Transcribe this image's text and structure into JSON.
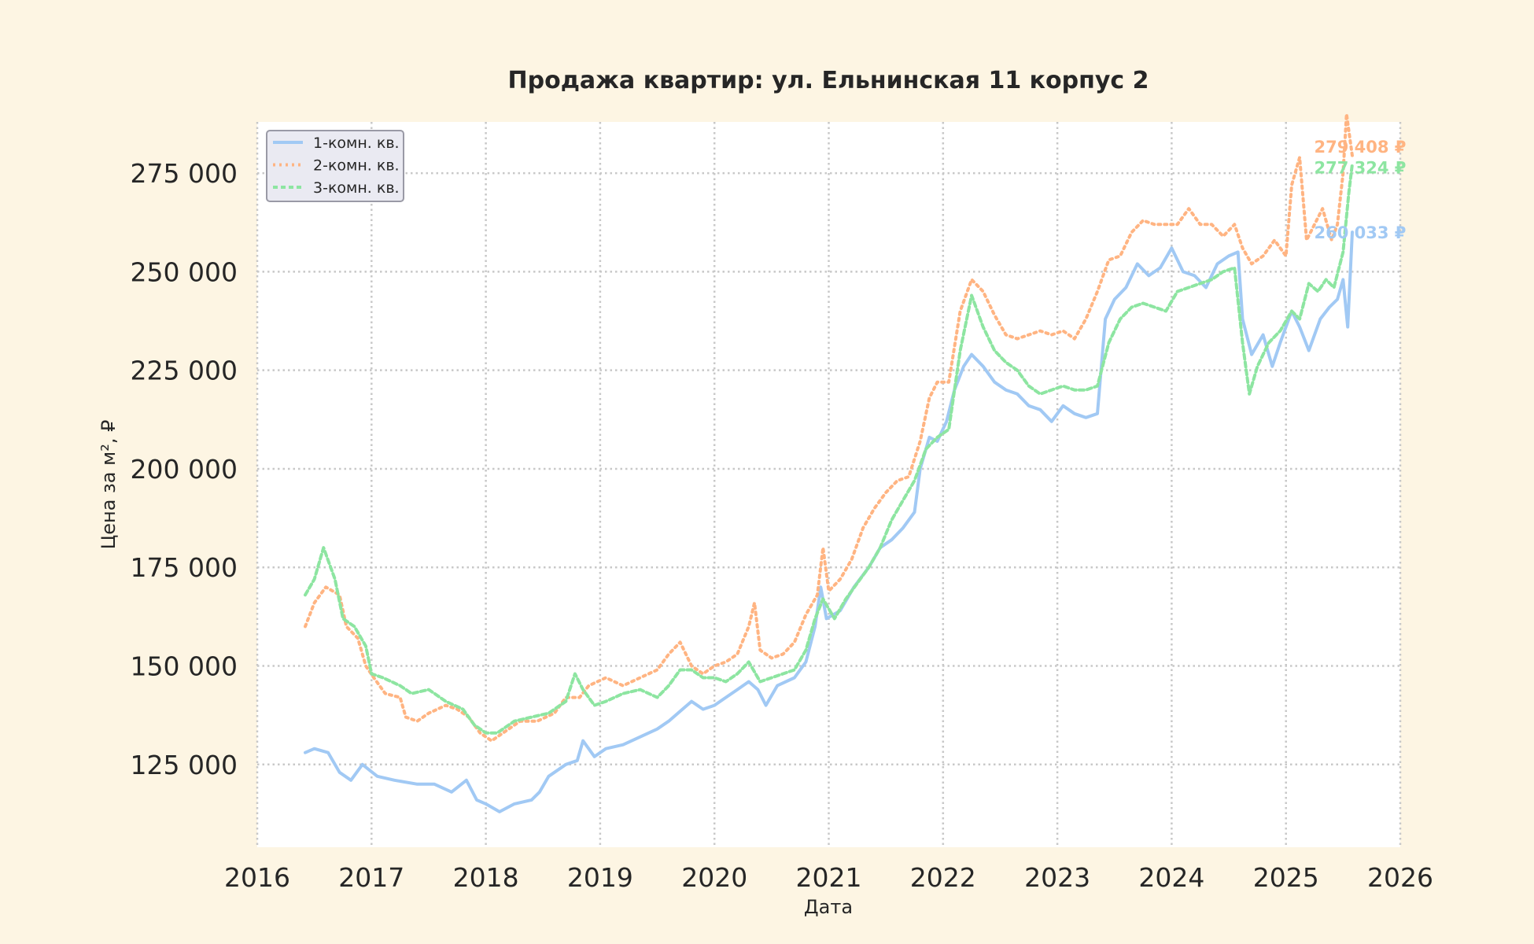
{
  "chart_data": {
    "type": "line",
    "title": "Продажа квартир: ул. Ельнинская 11 корпус 2",
    "xlabel": "Дата",
    "ylabel": "Цена за м², ₽",
    "xlim": [
      2016.0,
      2026.0
    ],
    "ylim": [
      104000,
      288000
    ],
    "x_ticks": [
      "2016",
      "2017",
      "2018",
      "2019",
      "2020",
      "2021",
      "2022",
      "2023",
      "2024",
      "2025",
      "2026"
    ],
    "y_ticks": [
      {
        "value": 125000,
        "label": "125 000"
      },
      {
        "value": 150000,
        "label": "150 000"
      },
      {
        "value": 175000,
        "label": "175 000"
      },
      {
        "value": 200000,
        "label": "200 000"
      },
      {
        "value": 225000,
        "label": "225 000"
      },
      {
        "value": 250000,
        "label": "250 000"
      },
      {
        "value": 275000,
        "label": "275 000"
      }
    ],
    "grid": true,
    "legend_position": "top-left",
    "series": [
      {
        "name": "1-комн. кв.",
        "color": "#a1c9f4",
        "dash": "solid",
        "end_label": "260 033 ₽",
        "points": [
          [
            2016.42,
            128000
          ],
          [
            2016.5,
            129000
          ],
          [
            2016.62,
            128000
          ],
          [
            2016.72,
            123000
          ],
          [
            2016.82,
            121000
          ],
          [
            2016.92,
            125000
          ],
          [
            2017.05,
            122000
          ],
          [
            2017.2,
            121000
          ],
          [
            2017.4,
            120000
          ],
          [
            2017.55,
            120000
          ],
          [
            2017.7,
            118000
          ],
          [
            2017.83,
            121000
          ],
          [
            2017.92,
            116000
          ],
          [
            2018.0,
            115000
          ],
          [
            2018.12,
            113000
          ],
          [
            2018.25,
            115000
          ],
          [
            2018.4,
            116000
          ],
          [
            2018.47,
            118000
          ],
          [
            2018.55,
            122000
          ],
          [
            2018.7,
            125000
          ],
          [
            2018.8,
            126000
          ],
          [
            2018.85,
            131000
          ],
          [
            2018.95,
            127000
          ],
          [
            2019.05,
            129000
          ],
          [
            2019.2,
            130000
          ],
          [
            2019.35,
            132000
          ],
          [
            2019.5,
            134000
          ],
          [
            2019.6,
            136000
          ],
          [
            2019.72,
            139000
          ],
          [
            2019.8,
            141000
          ],
          [
            2019.9,
            139000
          ],
          [
            2020.0,
            140000
          ],
          [
            2020.1,
            142000
          ],
          [
            2020.2,
            144000
          ],
          [
            2020.3,
            146000
          ],
          [
            2020.38,
            144000
          ],
          [
            2020.45,
            140000
          ],
          [
            2020.55,
            145000
          ],
          [
            2020.7,
            147000
          ],
          [
            2020.8,
            151000
          ],
          [
            2020.88,
            160000
          ],
          [
            2020.93,
            170000
          ],
          [
            2020.98,
            162000
          ],
          [
            2021.1,
            164000
          ],
          [
            2021.22,
            170000
          ],
          [
            2021.35,
            175000
          ],
          [
            2021.45,
            180000
          ],
          [
            2021.55,
            182000
          ],
          [
            2021.65,
            185000
          ],
          [
            2021.75,
            189000
          ],
          [
            2021.8,
            200000
          ],
          [
            2021.88,
            208000
          ],
          [
            2021.95,
            207000
          ],
          [
            2022.03,
            212000
          ],
          [
            2022.1,
            220000
          ],
          [
            2022.18,
            226000
          ],
          [
            2022.25,
            229000
          ],
          [
            2022.35,
            226000
          ],
          [
            2022.45,
            222000
          ],
          [
            2022.55,
            220000
          ],
          [
            2022.65,
            219000
          ],
          [
            2022.75,
            216000
          ],
          [
            2022.85,
            215000
          ],
          [
            2022.95,
            212000
          ],
          [
            2023.05,
            216000
          ],
          [
            2023.15,
            214000
          ],
          [
            2023.25,
            213000
          ],
          [
            2023.35,
            214000
          ],
          [
            2023.42,
            238000
          ],
          [
            2023.5,
            243000
          ],
          [
            2023.6,
            246000
          ],
          [
            2023.7,
            252000
          ],
          [
            2023.8,
            249000
          ],
          [
            2023.9,
            251000
          ],
          [
            2024.0,
            256000
          ],
          [
            2024.1,
            250000
          ],
          [
            2024.2,
            249000
          ],
          [
            2024.3,
            246000
          ],
          [
            2024.4,
            252000
          ],
          [
            2024.5,
            254000
          ],
          [
            2024.58,
            255000
          ],
          [
            2024.62,
            238000
          ],
          [
            2024.7,
            229000
          ],
          [
            2024.8,
            234000
          ],
          [
            2024.88,
            226000
          ],
          [
            2024.95,
            232000
          ],
          [
            2025.05,
            240000
          ],
          [
            2025.12,
            236000
          ],
          [
            2025.2,
            230000
          ],
          [
            2025.3,
            238000
          ],
          [
            2025.38,
            241000
          ],
          [
            2025.45,
            243000
          ],
          [
            2025.5,
            248000
          ],
          [
            2025.54,
            236000
          ],
          [
            2025.58,
            260033
          ]
        ]
      },
      {
        "name": "2-комн. кв.",
        "color": "#ffb482",
        "dash": "dotted",
        "end_label": "279 408 ₽",
        "points": [
          [
            2016.42,
            160000
          ],
          [
            2016.5,
            166000
          ],
          [
            2016.6,
            170000
          ],
          [
            2016.72,
            168000
          ],
          [
            2016.78,
            160000
          ],
          [
            2016.88,
            157000
          ],
          [
            2016.95,
            150000
          ],
          [
            2017.02,
            147000
          ],
          [
            2017.12,
            143000
          ],
          [
            2017.25,
            142000
          ],
          [
            2017.3,
            137000
          ],
          [
            2017.4,
            136000
          ],
          [
            2017.5,
            138000
          ],
          [
            2017.65,
            140000
          ],
          [
            2017.75,
            139000
          ],
          [
            2017.85,
            137000
          ],
          [
            2017.95,
            133000
          ],
          [
            2018.05,
            131000
          ],
          [
            2018.15,
            133000
          ],
          [
            2018.3,
            136000
          ],
          [
            2018.45,
            136000
          ],
          [
            2018.6,
            138000
          ],
          [
            2018.7,
            142000
          ],
          [
            2018.82,
            142000
          ],
          [
            2018.9,
            145000
          ],
          [
            2019.05,
            147000
          ],
          [
            2019.2,
            145000
          ],
          [
            2019.35,
            147000
          ],
          [
            2019.5,
            149000
          ],
          [
            2019.6,
            153000
          ],
          [
            2019.7,
            156000
          ],
          [
            2019.8,
            150000
          ],
          [
            2019.9,
            148000
          ],
          [
            2020.0,
            150000
          ],
          [
            2020.1,
            151000
          ],
          [
            2020.2,
            153000
          ],
          [
            2020.3,
            160000
          ],
          [
            2020.35,
            166000
          ],
          [
            2020.4,
            154000
          ],
          [
            2020.5,
            152000
          ],
          [
            2020.6,
            153000
          ],
          [
            2020.7,
            156000
          ],
          [
            2020.8,
            163000
          ],
          [
            2020.9,
            168000
          ],
          [
            2020.95,
            180000
          ],
          [
            2021.0,
            169000
          ],
          [
            2021.1,
            172000
          ],
          [
            2021.2,
            177000
          ],
          [
            2021.3,
            185000
          ],
          [
            2021.4,
            190000
          ],
          [
            2021.5,
            194000
          ],
          [
            2021.6,
            197000
          ],
          [
            2021.7,
            198000
          ],
          [
            2021.8,
            207000
          ],
          [
            2021.88,
            218000
          ],
          [
            2021.95,
            222000
          ],
          [
            2022.05,
            222000
          ],
          [
            2022.15,
            240000
          ],
          [
            2022.25,
            248000
          ],
          [
            2022.35,
            245000
          ],
          [
            2022.45,
            239000
          ],
          [
            2022.55,
            234000
          ],
          [
            2022.65,
            233000
          ],
          [
            2022.75,
            234000
          ],
          [
            2022.85,
            235000
          ],
          [
            2022.95,
            234000
          ],
          [
            2023.05,
            235000
          ],
          [
            2023.15,
            233000
          ],
          [
            2023.25,
            238000
          ],
          [
            2023.35,
            245000
          ],
          [
            2023.45,
            253000
          ],
          [
            2023.55,
            254000
          ],
          [
            2023.65,
            260000
          ],
          [
            2023.75,
            263000
          ],
          [
            2023.85,
            262000
          ],
          [
            2023.95,
            262000
          ],
          [
            2024.05,
            262000
          ],
          [
            2024.15,
            266000
          ],
          [
            2024.25,
            262000
          ],
          [
            2024.35,
            262000
          ],
          [
            2024.45,
            259000
          ],
          [
            2024.55,
            262000
          ],
          [
            2024.62,
            256000
          ],
          [
            2024.7,
            252000
          ],
          [
            2024.8,
            254000
          ],
          [
            2024.9,
            258000
          ],
          [
            2025.0,
            254000
          ],
          [
            2025.05,
            272000
          ],
          [
            2025.12,
            279000
          ],
          [
            2025.18,
            258000
          ],
          [
            2025.25,
            262000
          ],
          [
            2025.32,
            266000
          ],
          [
            2025.4,
            258000
          ],
          [
            2025.45,
            262000
          ],
          [
            2025.5,
            275000
          ],
          [
            2025.53,
            290000
          ],
          [
            2025.58,
            279408
          ]
        ]
      },
      {
        "name": "3-комн. кв.",
        "color": "#8de5a1",
        "dash": "dashed",
        "end_label": "277 324 ₽",
        "points": [
          [
            2016.42,
            168000
          ],
          [
            2016.5,
            172000
          ],
          [
            2016.58,
            180000
          ],
          [
            2016.68,
            172000
          ],
          [
            2016.75,
            162000
          ],
          [
            2016.85,
            160000
          ],
          [
            2016.95,
            155000
          ],
          [
            2017.0,
            148000
          ],
          [
            2017.1,
            147000
          ],
          [
            2017.25,
            145000
          ],
          [
            2017.35,
            143000
          ],
          [
            2017.5,
            144000
          ],
          [
            2017.65,
            141000
          ],
          [
            2017.8,
            139000
          ],
          [
            2017.9,
            135000
          ],
          [
            2018.0,
            133000
          ],
          [
            2018.1,
            133000
          ],
          [
            2018.25,
            136000
          ],
          [
            2018.4,
            137000
          ],
          [
            2018.55,
            138000
          ],
          [
            2018.7,
            141000
          ],
          [
            2018.78,
            148000
          ],
          [
            2018.85,
            144000
          ],
          [
            2018.95,
            140000
          ],
          [
            2019.05,
            141000
          ],
          [
            2019.2,
            143000
          ],
          [
            2019.35,
            144000
          ],
          [
            2019.5,
            142000
          ],
          [
            2019.6,
            145000
          ],
          [
            2019.7,
            149000
          ],
          [
            2019.8,
            149000
          ],
          [
            2019.9,
            147000
          ],
          [
            2020.0,
            147000
          ],
          [
            2020.1,
            146000
          ],
          [
            2020.2,
            148000
          ],
          [
            2020.3,
            151000
          ],
          [
            2020.4,
            146000
          ],
          [
            2020.5,
            147000
          ],
          [
            2020.6,
            148000
          ],
          [
            2020.7,
            149000
          ],
          [
            2020.8,
            154000
          ],
          [
            2020.88,
            162000
          ],
          [
            2020.95,
            167000
          ],
          [
            2021.05,
            162000
          ],
          [
            2021.15,
            167000
          ],
          [
            2021.25,
            171000
          ],
          [
            2021.35,
            175000
          ],
          [
            2021.45,
            180000
          ],
          [
            2021.55,
            187000
          ],
          [
            2021.65,
            192000
          ],
          [
            2021.75,
            197000
          ],
          [
            2021.85,
            205000
          ],
          [
            2021.95,
            208000
          ],
          [
            2022.05,
            210000
          ],
          [
            2022.15,
            230000
          ],
          [
            2022.25,
            244000
          ],
          [
            2022.35,
            236000
          ],
          [
            2022.45,
            230000
          ],
          [
            2022.55,
            227000
          ],
          [
            2022.65,
            225000
          ],
          [
            2022.75,
            221000
          ],
          [
            2022.85,
            219000
          ],
          [
            2022.95,
            220000
          ],
          [
            2023.05,
            221000
          ],
          [
            2023.15,
            220000
          ],
          [
            2023.25,
            220000
          ],
          [
            2023.35,
            221000
          ],
          [
            2023.45,
            232000
          ],
          [
            2023.55,
            238000
          ],
          [
            2023.65,
            241000
          ],
          [
            2023.75,
            242000
          ],
          [
            2023.85,
            241000
          ],
          [
            2023.95,
            240000
          ],
          [
            2024.05,
            245000
          ],
          [
            2024.15,
            246000
          ],
          [
            2024.25,
            247000
          ],
          [
            2024.35,
            248000
          ],
          [
            2024.45,
            250000
          ],
          [
            2024.55,
            251000
          ],
          [
            2024.62,
            232000
          ],
          [
            2024.68,
            219000
          ],
          [
            2024.75,
            226000
          ],
          [
            2024.85,
            232000
          ],
          [
            2024.95,
            235000
          ],
          [
            2025.05,
            240000
          ],
          [
            2025.12,
            238000
          ],
          [
            2025.2,
            247000
          ],
          [
            2025.28,
            245000
          ],
          [
            2025.35,
            248000
          ],
          [
            2025.42,
            246000
          ],
          [
            2025.5,
            255000
          ],
          [
            2025.55,
            270000
          ],
          [
            2025.58,
            277324
          ]
        ]
      }
    ]
  }
}
